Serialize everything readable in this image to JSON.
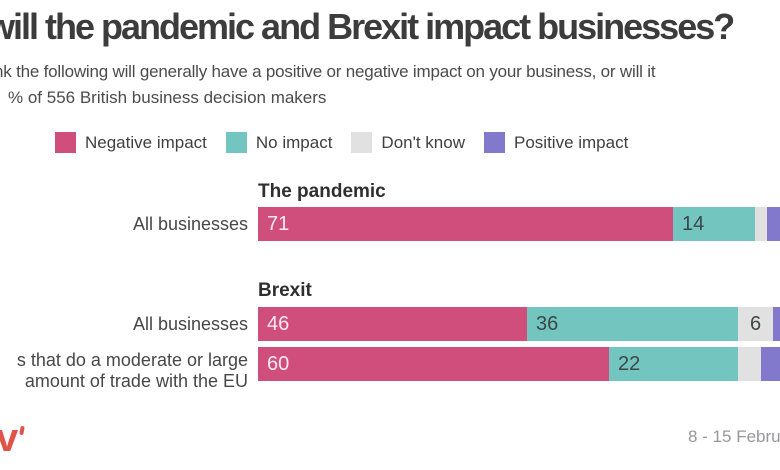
{
  "title": "will the pandemic and Brexit impact businesses?",
  "subtitle_line1": "nk the following will generally have a positive or negative impact on your business, or will it",
  "subtitle_line2": "% of 556 British business decision makers",
  "legend": [
    {
      "label": "Negative impact",
      "color": "#d04e7c"
    },
    {
      "label": "No impact",
      "color": "#73c5c0"
    },
    {
      "label": "Don't know",
      "color": "#e2e1e1"
    },
    {
      "label": "Positive impact",
      "color": "#8279cd"
    }
  ],
  "chart_data": {
    "type": "bar",
    "orientation": "horizontal-stacked",
    "title": "will the pandemic and Brexit impact businesses?",
    "unit": "% of 556 British business decision makers",
    "axis_range": [
      0,
      100
    ],
    "grid": false,
    "legend_position": "top",
    "series_names": [
      "Negative impact",
      "No impact",
      "Don't know",
      "Positive impact"
    ],
    "sections": [
      {
        "title": "The pandemic",
        "rows": [
          {
            "label_lines": [
              "All businesses"
            ],
            "values": [
              71,
              14,
              2,
              13
            ],
            "visible_labels": [
              "71",
              "14",
              "",
              ""
            ]
          }
        ]
      },
      {
        "title": "Brexit",
        "rows": [
          {
            "label_lines": [
              "All businesses"
            ],
            "values": [
              46,
              36,
              6,
              12
            ],
            "visible_labels": [
              "46",
              "36",
              "6",
              ""
            ]
          },
          {
            "label_lines": [
              "s that do a moderate or large",
              "amount of trade with the EU"
            ],
            "values": [
              60,
              22,
              4,
              14
            ],
            "visible_labels": [
              "60",
              "22",
              "",
              ""
            ]
          }
        ]
      }
    ]
  },
  "footer": {
    "date_text": "8 - 15 Febru",
    "logo_text": "v"
  }
}
